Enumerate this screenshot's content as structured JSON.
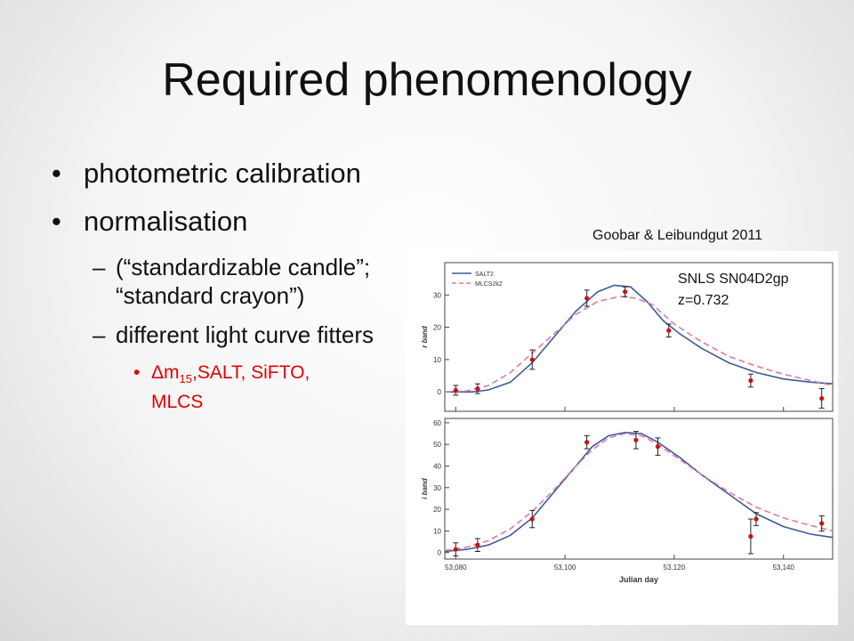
{
  "slide": {
    "title": "Required phenomenology",
    "bullets": [
      {
        "text": "photometric calibration"
      },
      {
        "text": "normalisation"
      }
    ],
    "subbullets": [
      {
        "text": "(“standardizable candle”; “standard crayon”)"
      },
      {
        "text": "different light curve fitters"
      }
    ],
    "subsub": {
      "delta": "Δm",
      "sub": "15",
      "rest": ",SALT, SiFTO, MLCS"
    },
    "source": "Goobar & Leibundgut 2011",
    "annotation_line1": "SNLS SN04D2gp",
    "annotation_line2": "z=0.732"
  },
  "colors": {
    "salt2": "#3d5a99",
    "mlcs": "#e07aa0",
    "points": "#cc1010",
    "highlight_text": "#e00000"
  },
  "chart_data": [
    {
      "type": "line",
      "panel": "top",
      "xlabel": "",
      "ylabel": "r band",
      "xlim": [
        53078,
        53149
      ],
      "ylim": [
        -6,
        40
      ],
      "yticks": [
        0,
        10,
        20,
        30
      ],
      "legend": {
        "placement": "top-left",
        "entries": [
          "SALT2",
          "MLCS2k2"
        ]
      },
      "series": [
        {
          "name": "SALT2",
          "style": "solid",
          "x": [
            53078,
            53083,
            53086,
            53090,
            53094,
            53098,
            53102,
            53106,
            53109,
            53112,
            53115,
            53118,
            53121,
            53125,
            53130,
            53135,
            53140,
            53145,
            53149
          ],
          "y": [
            0,
            0,
            0.6,
            3,
            9,
            17,
            25,
            31,
            33,
            32.5,
            28,
            22,
            18,
            13.5,
            9,
            6,
            4,
            3,
            2.5
          ]
        },
        {
          "name": "MLCS2k2",
          "style": "dashed",
          "x": [
            53078,
            53082,
            53086,
            53090,
            53094,
            53098,
            53102,
            53106,
            53110,
            53113,
            53116,
            53120,
            53125,
            53130,
            53135,
            53140,
            53145,
            53149
          ],
          "y": [
            0,
            0.3,
            2,
            6,
            12,
            18,
            24,
            28,
            29.5,
            29,
            27,
            21,
            15.5,
            11,
            8,
            5.5,
            3.5,
            2
          ]
        }
      ],
      "points": [
        {
          "x": 53080,
          "y": 0.5,
          "err": 1.5
        },
        {
          "x": 53084,
          "y": 1,
          "err": 1.5
        },
        {
          "x": 53094,
          "y": 10,
          "err": 3
        },
        {
          "x": 53104,
          "y": 29,
          "err": 2.5
        },
        {
          "x": 53111,
          "y": 31,
          "err": 1.5
        },
        {
          "x": 53119,
          "y": 19,
          "err": 2
        },
        {
          "x": 53134,
          "y": 3.5,
          "err": 2
        },
        {
          "x": 53147,
          "y": -2,
          "err": 3
        }
      ]
    },
    {
      "type": "line",
      "panel": "bottom",
      "xlabel": "Julian day",
      "ylabel": "i band",
      "xlim": [
        53078,
        53149
      ],
      "ylim": [
        -3,
        62
      ],
      "yticks": [
        0,
        10,
        20,
        30,
        40,
        50,
        60
      ],
      "xticks": [
        "53,080",
        "53,100",
        "53,120",
        "53,140"
      ],
      "xtick_values": [
        53080,
        53100,
        53120,
        53140
      ],
      "series": [
        {
          "name": "SALT2",
          "style": "solid",
          "x": [
            53078,
            53082,
            53086,
            53090,
            53094,
            53098,
            53102,
            53105,
            53108,
            53111,
            53114,
            53117,
            53121,
            53125,
            53130,
            53135,
            53140,
            53145,
            53149
          ],
          "y": [
            0.5,
            1.5,
            3.5,
            8,
            16,
            28,
            40,
            49,
            54,
            55.5,
            55,
            51,
            44,
            36,
            27,
            18,
            12,
            8.5,
            7
          ]
        },
        {
          "name": "MLCS2k2",
          "style": "dashed",
          "x": [
            53078,
            53082,
            53086,
            53090,
            53094,
            53098,
            53102,
            53105,
            53108,
            53111,
            53114,
            53117,
            53121,
            53125,
            53130,
            53135,
            53140,
            53145,
            53149
          ],
          "y": [
            1,
            2.5,
            5.5,
            11,
            19,
            29,
            40,
            47.5,
            53,
            55,
            54,
            50,
            43,
            36,
            28,
            21,
            16,
            12.5,
            10
          ]
        }
      ],
      "points": [
        {
          "x": 53080,
          "y": 1.5,
          "err": 3
        },
        {
          "x": 53084,
          "y": 3.5,
          "err": 3
        },
        {
          "x": 53094,
          "y": 15.5,
          "err": 4
        },
        {
          "x": 53104,
          "y": 51,
          "err": 3
        },
        {
          "x": 53113,
          "y": 52,
          "err": 4
        },
        {
          "x": 53117,
          "y": 49,
          "err": 4
        },
        {
          "x": 53134,
          "y": 7.5,
          "err": 8
        },
        {
          "x": 53135,
          "y": 15.5,
          "err": 3
        },
        {
          "x": 53147,
          "y": 13.5,
          "err": 3.5
        }
      ]
    }
  ]
}
